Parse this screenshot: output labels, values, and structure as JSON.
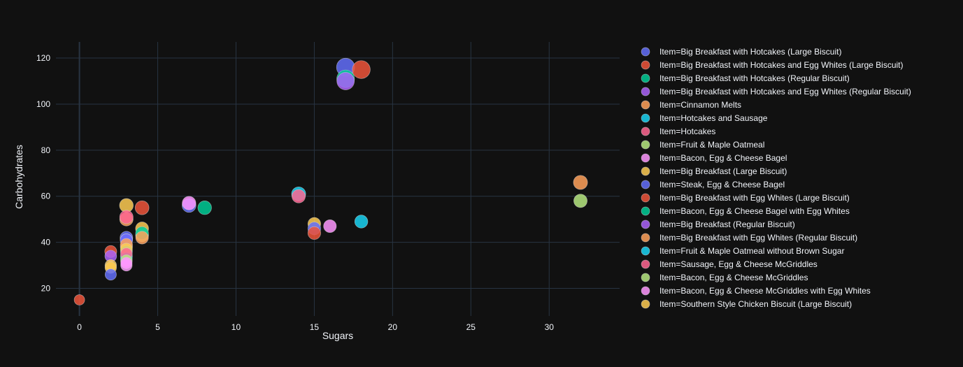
{
  "chart_data": {
    "type": "scatter",
    "xlabel": "Sugars",
    "ylabel": "Carbohydrates",
    "xlim": [
      -1.5,
      34.5
    ],
    "ylim": [
      8,
      127
    ],
    "xticks": [
      0,
      5,
      10,
      15,
      20,
      25,
      30
    ],
    "yticks": [
      20,
      40,
      60,
      80,
      100,
      120
    ],
    "grid": true,
    "legend_position": "right",
    "series": [
      {
        "name": "Item=Big Breakfast with Hotcakes (Large Biscuit)",
        "color": "#636efa",
        "points": [
          {
            "x": 17,
            "y": 116,
            "size": 1.0
          }
        ]
      },
      {
        "name": "Item=Big Breakfast with Hotcakes and Egg Whites (Large Biscuit)",
        "color": "#EF553B",
        "points": [
          {
            "x": 18,
            "y": 115,
            "size": 0.98
          }
        ]
      },
      {
        "name": "Item=Big Breakfast with Hotcakes (Regular Biscuit)",
        "color": "#00cc96",
        "points": [
          {
            "x": 17,
            "y": 111,
            "size": 0.96
          }
        ]
      },
      {
        "name": "Item=Big Breakfast with Hotcakes and Egg Whites (Regular Biscuit)",
        "color": "#ab63fa",
        "points": [
          {
            "x": 17,
            "y": 110,
            "size": 0.94
          }
        ]
      },
      {
        "name": "Item=Cinnamon Melts",
        "color": "#FFA15A",
        "points": [
          {
            "x": 32,
            "y": 66,
            "size": 0.66
          },
          {
            "x": 3,
            "y": 50,
            "size": 0.6
          }
        ]
      },
      {
        "name": "Item=Hotcakes and Sausage",
        "color": "#19d3f3",
        "points": [
          {
            "x": 14,
            "y": 61,
            "size": 0.66
          },
          {
            "x": 18,
            "y": 49,
            "size": 0.57
          },
          {
            "x": 3,
            "y": 33,
            "size": 0.46
          }
        ]
      },
      {
        "name": "Item=Hotcakes",
        "color": "#FF6692",
        "points": [
          {
            "x": 14,
            "y": 60,
            "size": 0.6
          },
          {
            "x": 3,
            "y": 51,
            "size": 0.6
          }
        ]
      },
      {
        "name": "Item=Fruit & Maple Oatmeal",
        "color": "#B6E880",
        "points": [
          {
            "x": 32,
            "y": 58,
            "size": 0.6
          },
          {
            "x": 4,
            "y": 43,
            "size": 0.56
          }
        ]
      },
      {
        "name": "Item=Bacon, Egg & Cheese Bagel",
        "color": "#FF97FF",
        "points": [
          {
            "x": 7,
            "y": 57,
            "size": 0.62
          },
          {
            "x": 16,
            "y": 47,
            "size": 0.55
          },
          {
            "x": 3,
            "y": 30,
            "size": 0.44
          }
        ]
      },
      {
        "name": "Item=Big Breakfast (Large Biscuit)",
        "color": "#FECB52",
        "points": [
          {
            "x": 3,
            "y": 56,
            "size": 0.63
          },
          {
            "x": 4,
            "y": 46,
            "size": 0.57
          },
          {
            "x": 15,
            "y": 48,
            "size": 0.55
          },
          {
            "x": 3,
            "y": 38,
            "size": 0.5
          },
          {
            "x": 2,
            "y": 30,
            "size": 0.44
          }
        ]
      },
      {
        "name": "Item=Steak, Egg & Cheese Bagel",
        "color": "#636efa",
        "points": [
          {
            "x": 7,
            "y": 56,
            "size": 0.64
          },
          {
            "x": 3,
            "y": 42,
            "size": 0.54
          },
          {
            "x": 15,
            "y": 46,
            "size": 0.55
          },
          {
            "x": 3,
            "y": 41,
            "size": 0.5
          },
          {
            "x": 2,
            "y": 26,
            "size": 0.42
          }
        ]
      },
      {
        "name": "Item=Big Breakfast with Egg Whites (Large Biscuit)",
        "color": "#EF553B",
        "points": [
          {
            "x": 4,
            "y": 55,
            "size": 0.64
          },
          {
            "x": 15,
            "y": 44,
            "size": 0.55
          },
          {
            "x": 2,
            "y": 36,
            "size": 0.48
          },
          {
            "x": 0,
            "y": 15,
            "size": 0.35
          }
        ]
      },
      {
        "name": "Item=Bacon, Egg & Cheese Bagel with Egg Whites",
        "color": "#00cc96",
        "points": [
          {
            "x": 8,
            "y": 55,
            "size": 0.62
          },
          {
            "x": 4,
            "y": 44,
            "size": 0.55
          },
          {
            "x": 3,
            "y": 34,
            "size": 0.48
          }
        ]
      },
      {
        "name": "Item=Big Breakfast (Regular Biscuit)",
        "color": "#ab63fa",
        "points": [
          {
            "x": 3,
            "y": 41,
            "size": 0.52
          },
          {
            "x": 2,
            "y": 34,
            "size": 0.46
          }
        ]
      },
      {
        "name": "Item=Big Breakfast with Egg Whites (Regular Biscuit)",
        "color": "#FFA15A",
        "points": [
          {
            "x": 4,
            "y": 42,
            "size": 0.54
          },
          {
            "x": 3,
            "y": 39,
            "size": 0.5
          }
        ]
      },
      {
        "name": "Item=Fruit & Maple Oatmeal without Brown Sugar",
        "color": "#19d3f3",
        "points": [
          {
            "x": 3,
            "y": 36,
            "size": 0.48
          }
        ]
      },
      {
        "name": "Item=Sausage, Egg & Cheese McGriddles",
        "color": "#FF6692",
        "points": [
          {
            "x": 3,
            "y": 35,
            "size": 0.46
          }
        ]
      },
      {
        "name": "Item=Bacon, Egg & Cheese McGriddles",
        "color": "#B6E880",
        "points": [
          {
            "x": 3,
            "y": 32,
            "size": 0.46
          }
        ]
      },
      {
        "name": "Item=Bacon, Egg & Cheese McGriddles with Egg Whites",
        "color": "#FF97FF",
        "points": [
          {
            "x": 3,
            "y": 31,
            "size": 0.44
          }
        ]
      },
      {
        "name": "Item=Southern Style Chicken Biscuit (Large Biscuit)",
        "color": "#FECB52",
        "points": [
          {
            "x": 3,
            "y": 37,
            "size": 0.48
          },
          {
            "x": 2,
            "y": 29,
            "size": 0.44
          }
        ]
      }
    ]
  }
}
